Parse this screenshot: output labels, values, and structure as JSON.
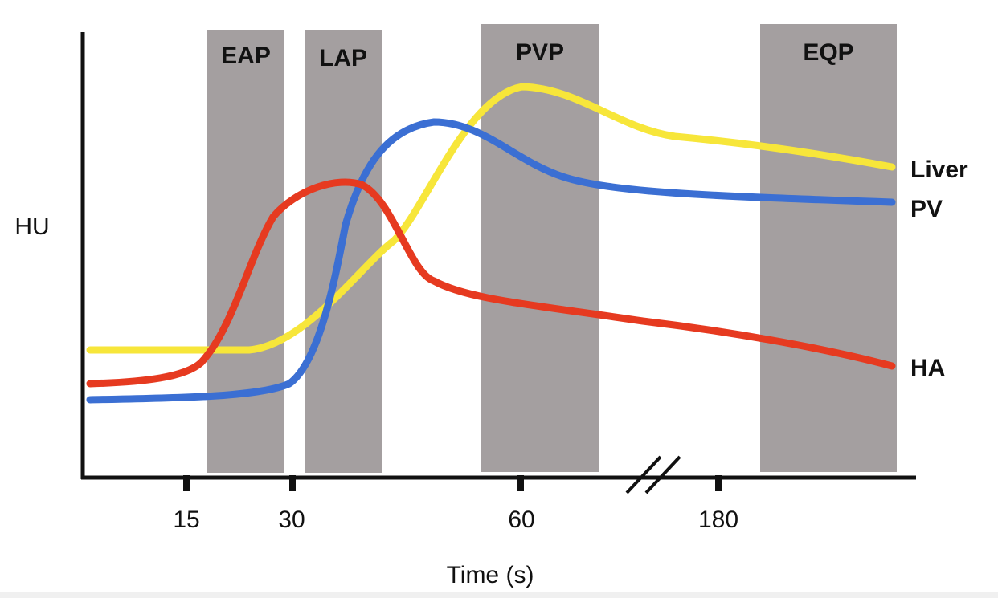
{
  "chart_data": {
    "type": "line",
    "ylabel": "HU",
    "xlabel": "Time (s)",
    "axis_break": true,
    "x_ticks": [
      "15",
      "30",
      "60",
      "180"
    ],
    "phases": [
      {
        "label": "EAP",
        "color": "#a49fa0"
      },
      {
        "label": "LAP",
        "color": "#a49fa0"
      },
      {
        "label": "PVP",
        "color": "#a49fa0"
      },
      {
        "label": "EQP",
        "color": "#a49fa0"
      }
    ],
    "series": [
      {
        "name": "Liver",
        "color": "#f7e63a"
      },
      {
        "name": "PV",
        "color": "#3b6fd3"
      },
      {
        "name": "HA",
        "color": "#e63a20"
      }
    ]
  }
}
